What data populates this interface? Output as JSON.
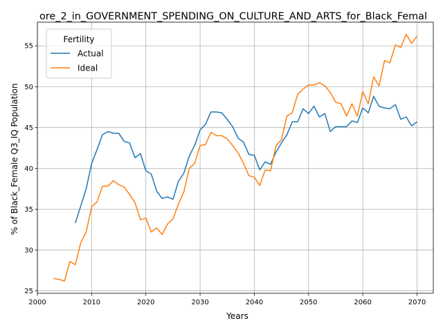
{
  "chart_data": {
    "type": "line",
    "title": "ore_2_in_GOVERNMENT_SPENDING_ON_CULTURE_AND_ARTS_for_Black_Femal",
    "xlabel": "Years",
    "ylabel": "% of Black_Female Q3_IQ Population",
    "xlim": [
      2000,
      2073
    ],
    "ylim": [
      24.7,
      57.9
    ],
    "xticks": [
      2000,
      2010,
      2020,
      2030,
      2040,
      2050,
      2060,
      2070
    ],
    "yticks": [
      25,
      30,
      35,
      40,
      45,
      50,
      55
    ],
    "grid": true,
    "legend": {
      "title": "Fertility",
      "placement": "top-left"
    },
    "series": [
      {
        "name": "Actual",
        "color": "#1f77b4",
        "x": [
          2007,
          2008,
          2009,
          2010,
          2011,
          2012,
          2013,
          2014,
          2015,
          2016,
          2017,
          2018,
          2019,
          2020,
          2021,
          2022,
          2023,
          2024,
          2025,
          2026,
          2027,
          2028,
          2029,
          2030,
          2031,
          2032,
          2033,
          2034,
          2035,
          2036,
          2037,
          2038,
          2039,
          2040,
          2041,
          2042,
          2043,
          2044,
          2045,
          2046,
          2047,
          2048,
          2049,
          2050,
          2051,
          2052,
          2053,
          2054,
          2055,
          2056,
          2057,
          2058,
          2059,
          2060,
          2061,
          2062,
          2063,
          2064,
          2065,
          2066,
          2067,
          2068,
          2069,
          2070
        ],
        "y": [
          33.3,
          35.4,
          37.5,
          40.6,
          42.3,
          44.1,
          44.5,
          44.3,
          44.3,
          43.3,
          43.1,
          41.3,
          41.8,
          39.7,
          39.3,
          37.2,
          36.3,
          36.5,
          36.2,
          38.4,
          39.4,
          41.5,
          42.8,
          44.7,
          45.4,
          46.9,
          46.9,
          46.8,
          46.0,
          45.1,
          43.7,
          43.2,
          41.7,
          41.6,
          39.8,
          40.8,
          40.5,
          42.0,
          43.1,
          44.1,
          45.7,
          45.7,
          47.3,
          46.7,
          47.6,
          46.3,
          46.7,
          44.5,
          45.1,
          45.1,
          45.1,
          45.8,
          45.6,
          47.4,
          46.8,
          48.8,
          47.6,
          47.4,
          47.3,
          47.8,
          46.0,
          46.3,
          45.2,
          45.7
        ]
      },
      {
        "name": "Ideal",
        "color": "#ff7f0e",
        "x": [
          2003,
          2004,
          2005,
          2006,
          2007,
          2008,
          2009,
          2010,
          2011,
          2012,
          2013,
          2014,
          2015,
          2016,
          2017,
          2018,
          2019,
          2020,
          2021,
          2022,
          2023,
          2024,
          2025,
          2026,
          2027,
          2028,
          2029,
          2030,
          2031,
          2032,
          2033,
          2034,
          2035,
          2036,
          2037,
          2038,
          2039,
          2040,
          2041,
          2042,
          2043,
          2044,
          2045,
          2046,
          2047,
          2048,
          2049,
          2050,
          2051,
          2052,
          2053,
          2054,
          2055,
          2056,
          2057,
          2058,
          2059,
          2060,
          2061,
          2062,
          2063,
          2064,
          2065,
          2066,
          2067,
          2068,
          2069,
          2070
        ],
        "y": [
          26.5,
          26.4,
          26.2,
          28.6,
          28.2,
          30.9,
          32.2,
          35.3,
          35.9,
          37.8,
          37.8,
          38.5,
          38.0,
          37.7,
          36.8,
          35.8,
          33.7,
          33.9,
          32.2,
          32.7,
          31.9,
          33.2,
          33.8,
          35.6,
          37.1,
          40.0,
          40.6,
          42.8,
          42.9,
          44.4,
          44.0,
          44.0,
          43.6,
          42.8,
          41.9,
          40.6,
          39.1,
          38.9,
          37.9,
          39.8,
          39.7,
          42.8,
          43.5,
          46.4,
          46.8,
          49.1,
          49.7,
          50.2,
          50.2,
          50.5,
          50.1,
          49.3,
          48.1,
          47.9,
          46.4,
          47.9,
          46.4,
          49.4,
          47.9,
          51.2,
          50.1,
          53.2,
          52.9,
          55.1,
          54.8,
          56.4,
          55.3,
          56.2
        ]
      }
    ]
  }
}
